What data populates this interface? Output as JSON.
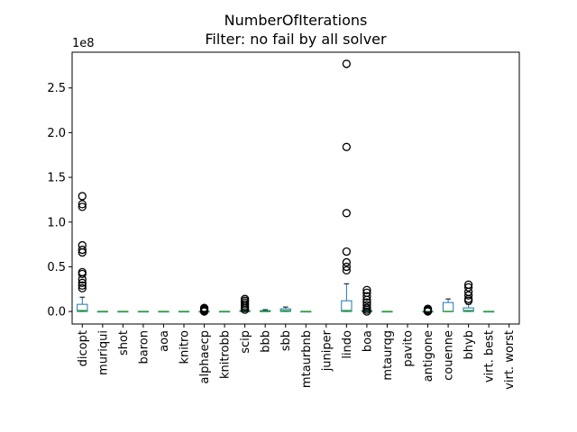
{
  "chart_data": {
    "type": "box",
    "title": "NumberOfIterations",
    "subtitle": "Filter: no fail by all solver",
    "offset_label": "1e8",
    "ylim": [
      -0.14,
      2.9
    ],
    "yticks": [
      0.0,
      0.5,
      1.0,
      1.5,
      2.0,
      2.5
    ],
    "ytick_labels": [
      "0.0",
      "0.5",
      "1.0",
      "1.5",
      "2.0",
      "2.5"
    ],
    "colors": {
      "box": "#1f77b4",
      "median": "#2ca02c",
      "flier": "#000000"
    },
    "categories": [
      "dicopt",
      "muriqui",
      "shot",
      "baron",
      "aoa",
      "knitro",
      "alphaecp",
      "knitrobb",
      "scip",
      "bbb",
      "sbb",
      "mtaurbnb",
      "juniper",
      "lindo",
      "boa",
      "mtaurqg",
      "pavito",
      "antigone",
      "couenne",
      "bhyb",
      "virt. best",
      "virt. worst"
    ],
    "boxes": [
      {
        "q1": 0.0,
        "median": 0.01,
        "q3": 0.08,
        "whisker_low": 0.0,
        "whisker_high": 0.16,
        "fliers": [
          1.29,
          1.2,
          1.17,
          0.74,
          0.69,
          0.66,
          0.44,
          0.42,
          0.36,
          0.32,
          0.29,
          0.26
        ]
      },
      {
        "q1": 0.0,
        "median": 0.0,
        "q3": 0.0,
        "whisker_low": 0.0,
        "whisker_high": 0.0,
        "fliers": []
      },
      {
        "q1": 0.0,
        "median": 0.0,
        "q3": 0.0,
        "whisker_low": 0.0,
        "whisker_high": 0.0,
        "fliers": []
      },
      {
        "q1": 0.0,
        "median": 0.0,
        "q3": 0.0,
        "whisker_low": 0.0,
        "whisker_high": 0.0,
        "fliers": []
      },
      {
        "q1": 0.0,
        "median": 0.0,
        "q3": 0.0,
        "whisker_low": 0.0,
        "whisker_high": 0.0,
        "fliers": []
      },
      {
        "q1": 0.0,
        "median": 0.0,
        "q3": 0.0,
        "whisker_low": 0.0,
        "whisker_high": 0.0,
        "fliers": []
      },
      {
        "q1": 0.0,
        "median": 0.0,
        "q3": 0.0,
        "whisker_low": 0.0,
        "whisker_high": 0.0,
        "fliers": [
          0.0,
          0.01,
          0.02,
          0.03,
          0.04
        ]
      },
      {
        "q1": 0.0,
        "median": 0.0,
        "q3": 0.0,
        "whisker_low": 0.0,
        "whisker_high": 0.0,
        "fliers": []
      },
      {
        "q1": 0.0,
        "median": 0.0,
        "q3": 0.01,
        "whisker_low": 0.0,
        "whisker_high": 0.015,
        "fliers": [
          0.02,
          0.04,
          0.06,
          0.08,
          0.1,
          0.12,
          0.14
        ]
      },
      {
        "q1": 0.0,
        "median": 0.0,
        "q3": 0.01,
        "whisker_low": 0.0,
        "whisker_high": 0.02,
        "fliers": []
      },
      {
        "q1": 0.0,
        "median": 0.01,
        "q3": 0.03,
        "whisker_low": 0.0,
        "whisker_high": 0.05,
        "fliers": []
      },
      {
        "q1": 0.0,
        "median": 0.0,
        "q3": 0.0,
        "whisker_low": 0.0,
        "whisker_high": 0.0,
        "fliers": []
      },
      null,
      {
        "q1": 0.0,
        "median": 0.01,
        "q3": 0.12,
        "whisker_low": 0.0,
        "whisker_high": 0.31,
        "fliers": [
          2.77,
          1.84,
          1.1,
          0.67,
          0.55,
          0.5,
          0.46
        ]
      },
      {
        "q1": 0.0,
        "median": 0.0,
        "q3": 0.01,
        "whisker_low": 0.0,
        "whisker_high": 0.02,
        "fliers": [
          0.24,
          0.21,
          0.17,
          0.13,
          0.1,
          0.07,
          0.04,
          0.02,
          0.0
        ]
      },
      {
        "q1": 0.0,
        "median": 0.0,
        "q3": 0.0,
        "whisker_low": 0.0,
        "whisker_high": 0.0,
        "fliers": []
      },
      null,
      {
        "q1": 0.0,
        "median": 0.0,
        "q3": 0.0,
        "whisker_low": 0.0,
        "whisker_high": 0.0,
        "fliers": [
          0.0,
          0.01,
          0.02,
          0.03
        ]
      },
      {
        "q1": 0.0,
        "median": 0.0,
        "q3": 0.1,
        "whisker_low": 0.0,
        "whisker_high": 0.14,
        "fliers": []
      },
      {
        "q1": 0.0,
        "median": 0.01,
        "q3": 0.04,
        "whisker_low": 0.0,
        "whisker_high": 0.08,
        "fliers": [
          0.3,
          0.27,
          0.22,
          0.18,
          0.14,
          0.12
        ]
      },
      {
        "q1": 0.0,
        "median": 0.0,
        "q3": 0.0,
        "whisker_low": 0.0,
        "whisker_high": 0.0,
        "fliers": []
      },
      null
    ]
  }
}
